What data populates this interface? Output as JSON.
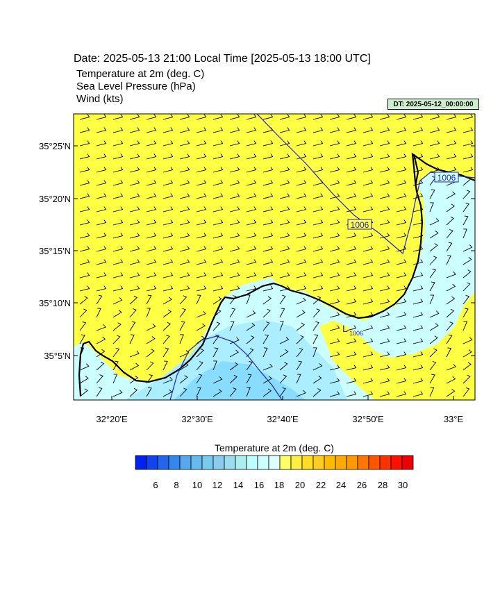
{
  "header": {
    "date_line": "Date: 2025-05-13  21:00 Local Time [2025-05-13  18:00 UTC]",
    "fields": [
      "Temperature at 2m   (deg. C)",
      "Sea Level Pressure   (hPa)",
      "Wind   (kts)"
    ],
    "dt_badge": "DT: 2025-05-12_00:00:00"
  },
  "map": {
    "lat_labels": [
      "35°25'N",
      "35°20'N",
      "35°15'N",
      "35°10'N",
      "35°5'N"
    ],
    "lon_labels": [
      "32°20'E",
      "32°30'E",
      "32°40'E",
      "32°50'E",
      "33°E"
    ],
    "isobar_labels": [
      "1006",
      "1006",
      "1006"
    ],
    "low_marker": "L",
    "colors": {
      "land_warm": "#ffff44",
      "sea_light": "#ccffff",
      "sea_mid": "#aaeeff",
      "sea_cool": "#88ddff",
      "isobar": "#2222cc"
    }
  },
  "colorbar": {
    "title": "Temperature at 2m  (deg. C)",
    "tick_labels": [
      "6",
      "8",
      "10",
      "12",
      "14",
      "16",
      "18",
      "20",
      "22",
      "24",
      "26",
      "28",
      "30"
    ],
    "colors": [
      "#0022ee",
      "#1144ee",
      "#2266ee",
      "#3388ee",
      "#55aaee",
      "#66bbee",
      "#77ccee",
      "#88ccee",
      "#99ddee",
      "#aaeeee",
      "#bbffff",
      "#ccffff",
      "#ddffff",
      "#ffff66",
      "#ffee44",
      "#ffdd22",
      "#ffcc22",
      "#ffbb00",
      "#ffaa00",
      "#ff9900",
      "#ff7700",
      "#ff5500",
      "#ff3300",
      "#ff1100",
      "#ee0000"
    ]
  }
}
